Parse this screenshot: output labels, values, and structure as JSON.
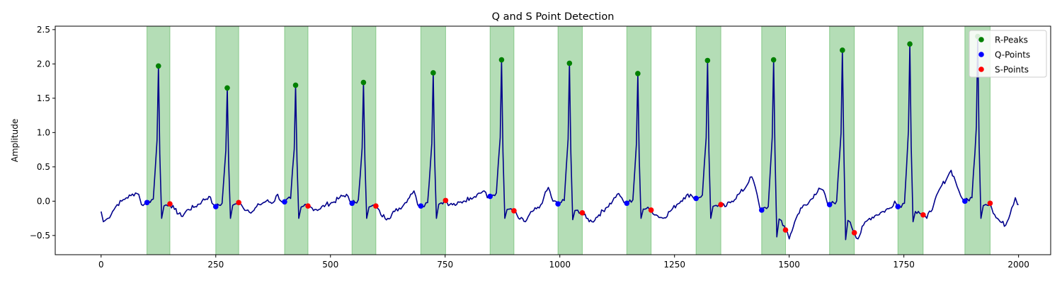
{
  "chart_data": {
    "type": "line",
    "title": "Q and S Point Detection",
    "xlabel": "",
    "ylabel": "Amplitude",
    "xlim": [
      -100,
      2070
    ],
    "ylim": [
      -0.78,
      2.55
    ],
    "xticks": [
      0,
      250,
      500,
      750,
      1000,
      1250,
      1500,
      1750,
      2000
    ],
    "yticks": [
      -0.5,
      0.0,
      0.5,
      1.0,
      1.5,
      2.0,
      2.5
    ],
    "xtick_labels": [
      "0",
      "250",
      "500",
      "750",
      "1000",
      "1250",
      "1500",
      "1750",
      "2000"
    ],
    "ytick_labels": [
      "−0.5",
      "0.0",
      "0.5",
      "1.0",
      "1.5",
      "2.0",
      "2.5"
    ],
    "grid": false,
    "legend_position": "top-right",
    "colors": {
      "signal": "#00008b",
      "r_peaks": "#008000",
      "q_points": "#0000ff",
      "s_points": "#ff0000",
      "qrs_band": "#4caf50"
    },
    "qrs_regions": [
      [
        100,
        150
      ],
      [
        250,
        300
      ],
      [
        400,
        451
      ],
      [
        547,
        599
      ],
      [
        697,
        751
      ],
      [
        848,
        900
      ],
      [
        996,
        1049
      ],
      [
        1146,
        1199
      ],
      [
        1297,
        1351
      ],
      [
        1440,
        1492
      ],
      [
        1588,
        1642
      ],
      [
        1737,
        1792
      ],
      [
        1883,
        1938
      ]
    ],
    "series": [
      {
        "name": "R-Peaks",
        "x": [
          125,
          275,
          424,
          572,
          724,
          873,
          1021,
          1170,
          1322,
          1466,
          1616,
          1763,
          1911
        ],
        "y": [
          1.97,
          1.65,
          1.69,
          1.73,
          1.87,
          2.06,
          2.01,
          1.86,
          2.05,
          2.06,
          2.2,
          2.29,
          2.4
        ]
      },
      {
        "name": "Q-Points",
        "x": [
          100,
          250,
          400,
          547,
          697,
          848,
          996,
          1146,
          1297,
          1440,
          1588,
          1737,
          1883
        ],
        "y": [
          -0.02,
          -0.08,
          -0.01,
          -0.03,
          -0.07,
          0.07,
          -0.04,
          -0.03,
          0.04,
          -0.13,
          -0.05,
          -0.08,
          0.0
        ]
      },
      {
        "name": "S-Points",
        "x": [
          150,
          300,
          451,
          599,
          751,
          900,
          1049,
          1199,
          1351,
          1492,
          1642,
          1792,
          1938
        ],
        "y": [
          -0.04,
          -0.02,
          -0.07,
          -0.07,
          0.01,
          -0.14,
          -0.17,
          -0.13,
          -0.05,
          -0.42,
          -0.46,
          -0.2,
          -0.03
        ]
      }
    ],
    "signal_baseline": [
      [
        0,
        -0.15
      ],
      [
        5,
        -0.3
      ],
      [
        15,
        -0.25
      ],
      [
        25,
        -0.15
      ],
      [
        35,
        -0.05
      ],
      [
        45,
        0.0
      ],
      [
        55,
        0.05
      ],
      [
        65,
        0.08
      ],
      [
        75,
        0.12
      ],
      [
        82,
        0.1
      ],
      [
        88,
        -0.05
      ],
      [
        95,
        -0.04
      ],
      [
        160,
        -0.12
      ],
      [
        175,
        -0.22
      ],
      [
        190,
        -0.12
      ],
      [
        205,
        -0.08
      ],
      [
        220,
        0.0
      ],
      [
        235,
        0.07
      ],
      [
        245,
        -0.05
      ],
      [
        310,
        -0.1
      ],
      [
        330,
        -0.15
      ],
      [
        345,
        -0.05
      ],
      [
        360,
        0.0
      ],
      [
        375,
        -0.02
      ],
      [
        385,
        0.1
      ],
      [
        392,
        0.0
      ],
      [
        460,
        -0.1
      ],
      [
        475,
        -0.12
      ],
      [
        490,
        -0.05
      ],
      [
        505,
        -0.02
      ],
      [
        520,
        0.05
      ],
      [
        535,
        0.1
      ],
      [
        542,
        0.0
      ],
      [
        610,
        -0.2
      ],
      [
        625,
        -0.25
      ],
      [
        640,
        -0.15
      ],
      [
        660,
        -0.05
      ],
      [
        675,
        0.1
      ],
      [
        682,
        0.15
      ],
      [
        690,
        -0.05
      ],
      [
        760,
        -0.05
      ],
      [
        775,
        -0.05
      ],
      [
        790,
        0.0
      ],
      [
        805,
        0.05
      ],
      [
        820,
        0.1
      ],
      [
        835,
        0.15
      ],
      [
        842,
        0.05
      ],
      [
        910,
        -0.25
      ],
      [
        925,
        -0.3
      ],
      [
        940,
        -0.15
      ],
      [
        955,
        -0.1
      ],
      [
        965,
        0.05
      ],
      [
        975,
        0.2
      ],
      [
        985,
        0.0
      ],
      [
        1058,
        -0.25
      ],
      [
        1070,
        -0.3
      ],
      [
        1085,
        -0.2
      ],
      [
        1100,
        -0.1
      ],
      [
        1115,
        0.0
      ],
      [
        1125,
        0.1
      ],
      [
        1135,
        0.05
      ],
      [
        1140,
        -0.02
      ],
      [
        1210,
        -0.2
      ],
      [
        1225,
        -0.25
      ],
      [
        1240,
        -0.15
      ],
      [
        1255,
        -0.05
      ],
      [
        1270,
        0.05
      ],
      [
        1285,
        0.1
      ],
      [
        1292,
        0.04
      ],
      [
        1360,
        -0.08
      ],
      [
        1375,
        0.0
      ],
      [
        1390,
        0.1
      ],
      [
        1405,
        0.2
      ],
      [
        1415,
        0.35
      ],
      [
        1422,
        0.3
      ],
      [
        1430,
        0.1
      ],
      [
        1436,
        -0.1
      ],
      [
        1500,
        -0.55
      ],
      [
        1512,
        -0.3
      ],
      [
        1525,
        -0.1
      ],
      [
        1540,
        -0.05
      ],
      [
        1555,
        0.1
      ],
      [
        1568,
        0.18
      ],
      [
        1578,
        0.1
      ],
      [
        1584,
        -0.05
      ],
      [
        1650,
        -0.55
      ],
      [
        1662,
        -0.35
      ],
      [
        1675,
        -0.25
      ],
      [
        1690,
        -0.2
      ],
      [
        1705,
        -0.15
      ],
      [
        1720,
        -0.1
      ],
      [
        1730,
        0.0
      ],
      [
        1800,
        -0.25
      ],
      [
        1815,
        -0.05
      ],
      [
        1830,
        0.2
      ],
      [
        1845,
        0.35
      ],
      [
        1853,
        0.45
      ],
      [
        1862,
        0.3
      ],
      [
        1870,
        0.15
      ],
      [
        1878,
        0.03
      ],
      [
        1948,
        -0.2
      ],
      [
        1960,
        -0.3
      ],
      [
        1972,
        -0.35
      ],
      [
        1985,
        -0.1
      ],
      [
        1993,
        0.05
      ],
      [
        1998,
        -0.05
      ],
      [
        2000,
        -0.05
      ]
    ]
  }
}
